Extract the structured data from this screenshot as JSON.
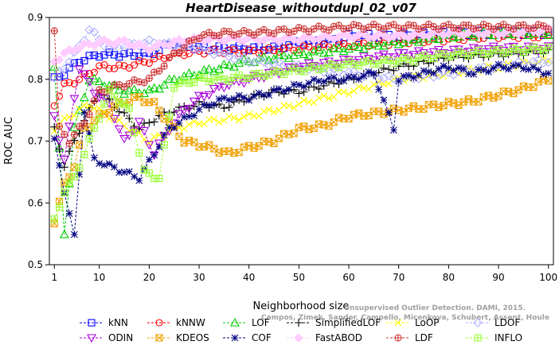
{
  "chart_data": {
    "type": "line",
    "title": "HeartDisease_withoutdupl_02_v07",
    "xlabel": "Neighborhood size",
    "ylabel": "ROC AUC",
    "xlim": [
      0,
      101
    ],
    "ylim": [
      0.5,
      0.9
    ],
    "xticks": [
      1,
      10,
      20,
      30,
      40,
      50,
      60,
      70,
      80,
      90,
      100
    ],
    "yticks": [
      0.5,
      0.6,
      0.7,
      0.8,
      0.9
    ],
    "grid": false,
    "legend_position": "bottom",
    "watermark": [
      "Campos, Zimek, Sander, Campello, Micenkova, Schubert, Assent, Houle",
      "Unsupervised Outlier Detection. DAMI, 2015."
    ],
    "series": [
      {
        "name": "kNN",
        "color": "#0000ff",
        "marker": "square",
        "dash": "dashed",
        "anchors": [
          [
            1,
            0.8
          ],
          [
            3,
            0.81
          ],
          [
            6,
            0.83
          ],
          [
            10,
            0.84
          ],
          [
            15,
            0.84
          ],
          [
            20,
            0.84
          ],
          [
            25,
            0.86
          ],
          [
            30,
            0.85
          ],
          [
            35,
            0.85
          ],
          [
            40,
            0.85
          ],
          [
            45,
            0.85
          ],
          [
            50,
            0.86
          ],
          [
            55,
            0.86
          ],
          [
            60,
            0.87
          ],
          [
            70,
            0.87
          ],
          [
            80,
            0.875
          ],
          [
            90,
            0.875
          ],
          [
            100,
            0.875
          ]
        ]
      },
      {
        "name": "kNNW",
        "color": "#ff0000",
        "marker": "circle",
        "dash": "dashed",
        "anchors": [
          [
            1,
            0.76
          ],
          [
            3,
            0.79
          ],
          [
            6,
            0.8
          ],
          [
            10,
            0.82
          ],
          [
            15,
            0.82
          ],
          [
            20,
            0.83
          ],
          [
            25,
            0.84
          ],
          [
            30,
            0.845
          ],
          [
            35,
            0.845
          ],
          [
            40,
            0.845
          ],
          [
            50,
            0.85
          ],
          [
            60,
            0.855
          ],
          [
            70,
            0.86
          ],
          [
            80,
            0.865
          ],
          [
            90,
            0.87
          ],
          [
            100,
            0.87
          ]
        ]
      },
      {
        "name": "LOF",
        "color": "#00cc00",
        "marker": "triangle",
        "dash": "dashed",
        "anchors": [
          [
            1,
            0.82
          ],
          [
            3,
            0.55
          ],
          [
            5,
            0.72
          ],
          [
            8,
            0.8
          ],
          [
            12,
            0.79
          ],
          [
            15,
            0.78
          ],
          [
            20,
            0.78
          ],
          [
            25,
            0.8
          ],
          [
            30,
            0.81
          ],
          [
            35,
            0.82
          ],
          [
            40,
            0.83
          ],
          [
            45,
            0.835
          ],
          [
            50,
            0.84
          ],
          [
            60,
            0.85
          ],
          [
            70,
            0.86
          ],
          [
            80,
            0.87
          ],
          [
            90,
            0.875
          ],
          [
            100,
            0.875
          ]
        ]
      },
      {
        "name": "SimplifiedLOF",
        "color": "#000000",
        "marker": "plus",
        "dash": "dashed",
        "anchors": [
          [
            1,
            0.72
          ],
          [
            3,
            0.66
          ],
          [
            5,
            0.7
          ],
          [
            8,
            0.75
          ],
          [
            10,
            0.78
          ],
          [
            14,
            0.75
          ],
          [
            18,
            0.72
          ],
          [
            22,
            0.74
          ],
          [
            25,
            0.75
          ],
          [
            30,
            0.76
          ],
          [
            35,
            0.755
          ],
          [
            40,
            0.77
          ],
          [
            45,
            0.78
          ],
          [
            50,
            0.78
          ],
          [
            55,
            0.79
          ],
          [
            60,
            0.8
          ],
          [
            70,
            0.82
          ],
          [
            80,
            0.835
          ],
          [
            90,
            0.84
          ],
          [
            100,
            0.845
          ]
        ]
      },
      {
        "name": "LoOP",
        "color": "#ffff00",
        "marker": "x",
        "dash": "dashed",
        "anchors": [
          [
            1,
            0.72
          ],
          [
            4,
            0.74
          ],
          [
            8,
            0.76
          ],
          [
            12,
            0.74
          ],
          [
            16,
            0.72
          ],
          [
            20,
            0.7
          ],
          [
            25,
            0.72
          ],
          [
            30,
            0.73
          ],
          [
            35,
            0.735
          ],
          [
            40,
            0.74
          ],
          [
            45,
            0.75
          ],
          [
            50,
            0.76
          ],
          [
            55,
            0.77
          ],
          [
            60,
            0.78
          ],
          [
            70,
            0.8
          ],
          [
            80,
            0.81
          ],
          [
            90,
            0.82
          ],
          [
            100,
            0.83
          ]
        ]
      },
      {
        "name": "LDOF",
        "color": "#b0b0ff",
        "marker": "diamond",
        "dash": "dashed",
        "anchors": [
          [
            1,
            0.8
          ],
          [
            5,
            0.84
          ],
          [
            8,
            0.88
          ],
          [
            12,
            0.85
          ],
          [
            20,
            0.86
          ],
          [
            30,
            0.85
          ],
          [
            40,
            0.83
          ],
          [
            50,
            0.82
          ],
          [
            60,
            0.81
          ],
          [
            70,
            0.8
          ],
          [
            80,
            0.81
          ],
          [
            90,
            0.82
          ],
          [
            100,
            0.83
          ]
        ]
      },
      {
        "name": "ODIN",
        "color": "#aa00dd",
        "marker": "triangle-down",
        "dash": "dashed",
        "anchors": [
          [
            1,
            0.74
          ],
          [
            3,
            0.67
          ],
          [
            6,
            0.82
          ],
          [
            9,
            0.78
          ],
          [
            12,
            0.76
          ],
          [
            15,
            0.7
          ],
          [
            18,
            0.73
          ],
          [
            21,
            0.68
          ],
          [
            24,
            0.72
          ],
          [
            27,
            0.75
          ],
          [
            30,
            0.77
          ],
          [
            35,
            0.79
          ],
          [
            40,
            0.8
          ],
          [
            45,
            0.81
          ],
          [
            50,
            0.82
          ],
          [
            60,
            0.83
          ],
          [
            70,
            0.84
          ],
          [
            80,
            0.845
          ],
          [
            90,
            0.85
          ],
          [
            100,
            0.85
          ]
        ]
      },
      {
        "name": "KDEOS",
        "color": "#f0a000",
        "marker": "square-x",
        "dash": "dashed",
        "anchors": [
          [
            1,
            0.57
          ],
          [
            3,
            0.63
          ],
          [
            5,
            0.66
          ],
          [
            7,
            0.72
          ],
          [
            10,
            0.74
          ],
          [
            14,
            0.76
          ],
          [
            18,
            0.77
          ],
          [
            21,
            0.76
          ],
          [
            24,
            0.73
          ],
          [
            27,
            0.7
          ],
          [
            32,
            0.69
          ],
          [
            36,
            0.68
          ],
          [
            40,
            0.69
          ],
          [
            45,
            0.7
          ],
          [
            50,
            0.72
          ],
          [
            55,
            0.725
          ],
          [
            60,
            0.74
          ],
          [
            65,
            0.745
          ],
          [
            70,
            0.75
          ],
          [
            75,
            0.755
          ],
          [
            80,
            0.76
          ],
          [
            85,
            0.765
          ],
          [
            90,
            0.775
          ],
          [
            95,
            0.785
          ],
          [
            100,
            0.8
          ]
        ]
      },
      {
        "name": "COF",
        "color": "#000080",
        "marker": "asterisk",
        "dash": "dashed",
        "anchors": [
          [
            1,
            0.7
          ],
          [
            3,
            0.62
          ],
          [
            5,
            0.545
          ],
          [
            7,
            0.75
          ],
          [
            9,
            0.67
          ],
          [
            12,
            0.66
          ],
          [
            15,
            0.65
          ],
          [
            18,
            0.64
          ],
          [
            21,
            0.68
          ],
          [
            24,
            0.72
          ],
          [
            28,
            0.74
          ],
          [
            32,
            0.76
          ],
          [
            36,
            0.77
          ],
          [
            40,
            0.77
          ],
          [
            45,
            0.78
          ],
          [
            50,
            0.79
          ],
          [
            55,
            0.8
          ],
          [
            60,
            0.8
          ],
          [
            65,
            0.81
          ],
          [
            69,
            0.72
          ],
          [
            70,
            0.8
          ],
          [
            75,
            0.81
          ],
          [
            80,
            0.82
          ],
          [
            85,
            0.81
          ],
          [
            90,
            0.82
          ],
          [
            95,
            0.82
          ],
          [
            100,
            0.81
          ]
        ]
      },
      {
        "name": "FastABOD",
        "color": "#ffccff",
        "marker": "diamond-filled",
        "dash": "dashed",
        "anchors": [
          [
            1,
            0.83
          ],
          [
            5,
            0.85
          ],
          [
            10,
            0.86
          ],
          [
            15,
            0.86
          ],
          [
            20,
            0.85
          ],
          [
            25,
            0.86
          ],
          [
            30,
            0.865
          ],
          [
            40,
            0.865
          ],
          [
            50,
            0.865
          ],
          [
            60,
            0.87
          ],
          [
            70,
            0.87
          ],
          [
            80,
            0.875
          ],
          [
            90,
            0.875
          ],
          [
            100,
            0.88
          ]
        ]
      },
      {
        "name": "LDF",
        "color": "#cc3333",
        "marker": "circle-plus",
        "dash": "dashed",
        "anchors": [
          [
            1,
            0.88
          ],
          [
            2,
            0.72
          ],
          [
            4,
            0.7
          ],
          [
            7,
            0.73
          ],
          [
            10,
            0.78
          ],
          [
            14,
            0.79
          ],
          [
            20,
            0.8
          ],
          [
            25,
            0.84
          ],
          [
            30,
            0.87
          ],
          [
            35,
            0.875
          ],
          [
            40,
            0.875
          ],
          [
            50,
            0.88
          ],
          [
            60,
            0.885
          ],
          [
            70,
            0.885
          ],
          [
            80,
            0.885
          ],
          [
            90,
            0.885
          ],
          [
            100,
            0.885
          ]
        ]
      },
      {
        "name": "INFLO",
        "color": "#99ff33",
        "marker": "star-square",
        "dash": "dashed",
        "anchors": [
          [
            1,
            0.57
          ],
          [
            3,
            0.62
          ],
          [
            5,
            0.64
          ],
          [
            8,
            0.7
          ],
          [
            12,
            0.78
          ],
          [
            16,
            0.75
          ],
          [
            19,
            0.65
          ],
          [
            22,
            0.64
          ],
          [
            25,
            0.79
          ],
          [
            30,
            0.8
          ],
          [
            35,
            0.8
          ],
          [
            40,
            0.805
          ],
          [
            45,
            0.81
          ],
          [
            50,
            0.815
          ],
          [
            55,
            0.82
          ],
          [
            60,
            0.825
          ],
          [
            70,
            0.83
          ],
          [
            80,
            0.84
          ],
          [
            90,
            0.845
          ],
          [
            100,
            0.85
          ]
        ]
      }
    ]
  }
}
